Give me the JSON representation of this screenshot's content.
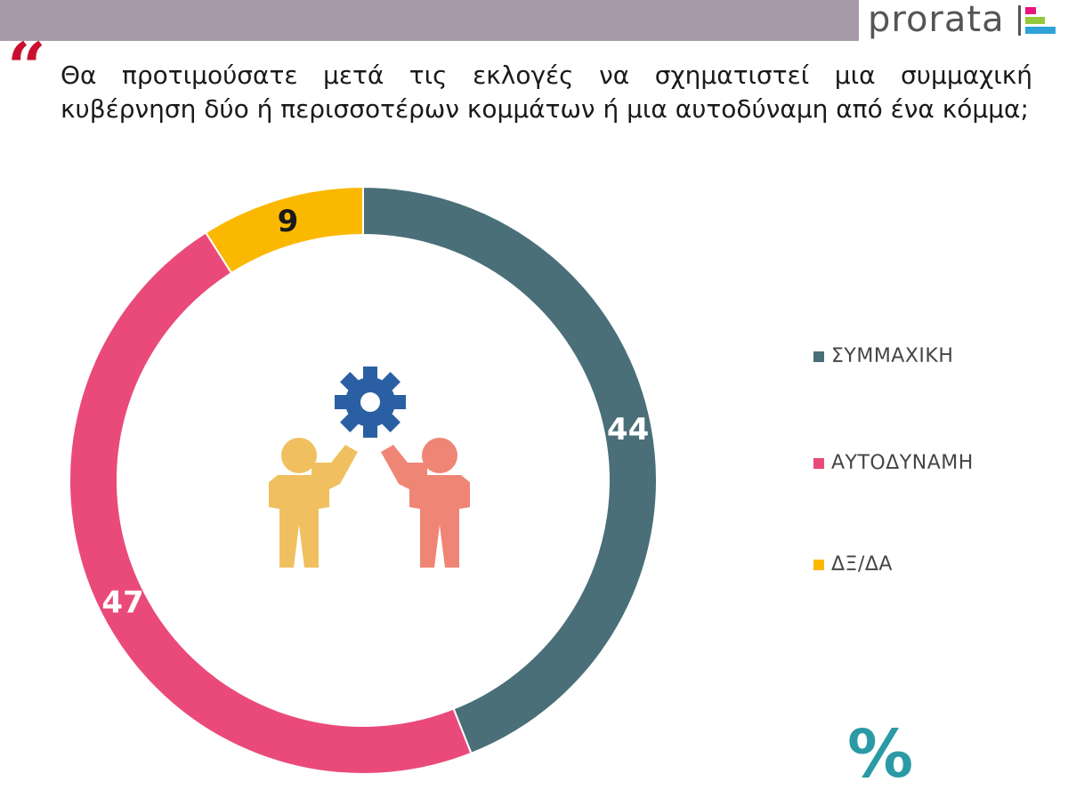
{
  "header": {
    "brand": "prorata",
    "brand_colors": [
      "#e8157f",
      "#96c83c",
      "#2fa3d8"
    ],
    "bar_color": "#a799a9"
  },
  "question": {
    "quote_icon": "quote-icon",
    "text": "Θα προτιμούσατε μετά τις εκλογές να σχηματιστεί μια συμμαχική κυβέρνηση δύο ή περισσοτέρων κομμάτων ή μια αυτοδύναμη από ένα κόμμα;"
  },
  "illustration": {
    "icons": [
      "gear-icon",
      "person-left-icon",
      "person-right-icon"
    ],
    "colors": {
      "gear": "#2b5fa3",
      "person_left": "#f0c060",
      "person_right": "#ef8575"
    }
  },
  "chart_data": {
    "type": "pie",
    "variant": "donut",
    "categories": [
      "ΣΥΜΜΑΧΙΚΗ",
      "ΑΥΤΟΔΥΝΑΜΗ",
      "ΔΞ/ΔΑ"
    ],
    "values": [
      44,
      47,
      9
    ],
    "colors": [
      "#4a6f78",
      "#ea4a7a",
      "#fbb800"
    ],
    "data_labels": [
      "44",
      "47",
      "9"
    ],
    "label_colors": [
      "#ffffff",
      "#ffffff",
      "#1a1a1a"
    ],
    "legend_position": "right",
    "unit_label": "%",
    "start_angle": "12 o'clock",
    "direction": "clockwise"
  }
}
